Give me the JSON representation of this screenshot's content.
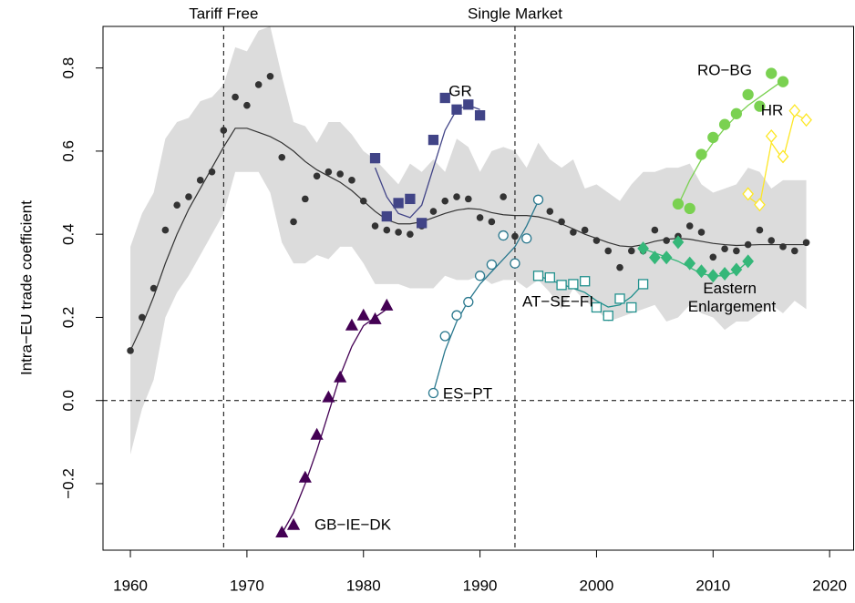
{
  "chart_data": {
    "type": "scatter",
    "y_label": "Intra−EU trade coefficient",
    "xlim": [
      1957.65,
      2022.1
    ],
    "ylim": [
      -0.36,
      0.9
    ],
    "xticks": [
      1960,
      1970,
      1980,
      1990,
      2000,
      2010,
      2020
    ],
    "yticks": [
      {
        "value": -0.2,
        "label": "−0.2"
      },
      {
        "value": 0,
        "label": "0.0"
      },
      0.2,
      0.4,
      0.6,
      0.8
    ],
    "hline": 0,
    "annotations": [
      {
        "x": 1968,
        "label": "Tariff Free"
      },
      {
        "x": 1993,
        "label": "Single Market"
      }
    ],
    "color": "#333333",
    "band_color": "#dcdcdc",
    "x": [
      1960,
      1961,
      1962,
      1963,
      1964,
      1965,
      1966,
      1967,
      1968,
      1969,
      1970,
      1971,
      1972,
      1973,
      1974,
      1975,
      1976,
      1977,
      1978,
      1979,
      1980,
      1981,
      1982,
      1983,
      1984,
      1985,
      1986,
      1987,
      1988,
      1989,
      1990,
      1991,
      1992,
      1993,
      1994,
      1995,
      1996,
      1997,
      1998,
      1999,
      2000,
      2001,
      2002,
      2003,
      2004,
      2005,
      2006,
      2007,
      2008,
      2009,
      2010,
      2011,
      2012,
      2013,
      2014,
      2015,
      2016,
      2017,
      2018
    ],
    "values": [
      0.12,
      0.2,
      0.27,
      0.41,
      0.47,
      0.49,
      0.53,
      0.55,
      0.65,
      0.73,
      0.71,
      0.76,
      0.78,
      0.585,
      0.43,
      0.485,
      0.54,
      0.55,
      0.545,
      0.53,
      0.48,
      0.42,
      0.41,
      0.405,
      0.4,
      0.42,
      0.455,
      0.48,
      0.49,
      0.485,
      0.44,
      0.43,
      0.49,
      0.395,
      0.39,
      0.485,
      0.455,
      0.43,
      0.405,
      0.41,
      0.385,
      0.36,
      0.32,
      0.36,
      0.36,
      0.41,
      0.385,
      0.395,
      0.42,
      0.405,
      0.345,
      0.365,
      0.36,
      0.375,
      0.41,
      0.385,
      0.37,
      0.36,
      0.38
    ],
    "trend": [
      0.12,
      0.18,
      0.25,
      0.33,
      0.4,
      0.46,
      0.51,
      0.56,
      0.61,
      0.655,
      0.655,
      0.645,
      0.635,
      0.62,
      0.6,
      0.575,
      0.555,
      0.54,
      0.525,
      0.505,
      0.48,
      0.455,
      0.435,
      0.425,
      0.425,
      0.43,
      0.44,
      0.45,
      0.458,
      0.462,
      0.46,
      0.452,
      0.447,
      0.445,
      0.445,
      0.442,
      0.435,
      0.425,
      0.413,
      0.4,
      0.39,
      0.38,
      0.372,
      0.37,
      0.375,
      0.383,
      0.388,
      0.39,
      0.388,
      0.383,
      0.378,
      0.375,
      0.373,
      0.374,
      0.375,
      0.375,
      0.375,
      0.375,
      0.375
    ],
    "upper": [
      0.37,
      0.45,
      0.5,
      0.63,
      0.67,
      0.68,
      0.72,
      0.73,
      0.76,
      0.85,
      0.84,
      0.89,
      0.9,
      0.78,
      0.67,
      0.66,
      0.62,
      0.67,
      0.67,
      0.64,
      0.6,
      0.58,
      0.55,
      0.52,
      0.57,
      0.55,
      0.58,
      0.55,
      0.63,
      0.61,
      0.55,
      0.6,
      0.61,
      0.6,
      0.56,
      0.62,
      0.58,
      0.56,
      0.58,
      0.51,
      0.52,
      0.5,
      0.48,
      0.52,
      0.55,
      0.55,
      0.56,
      0.56,
      0.57,
      0.52,
      0.5,
      0.51,
      0.52,
      0.56,
      0.55,
      0.51,
      0.53,
      0.53,
      0.53
    ],
    "lower": [
      -0.13,
      -0.02,
      0.05,
      0.2,
      0.26,
      0.3,
      0.35,
      0.4,
      0.45,
      0.55,
      0.55,
      0.55,
      0.5,
      0.38,
      0.33,
      0.33,
      0.35,
      0.34,
      0.37,
      0.37,
      0.33,
      0.28,
      0.28,
      0.28,
      0.27,
      0.27,
      0.27,
      0.3,
      0.29,
      0.29,
      0.3,
      0.28,
      0.29,
      0.29,
      0.27,
      0.29,
      0.26,
      0.22,
      0.27,
      0.24,
      0.22,
      0.19,
      0.2,
      0.21,
      0.22,
      0.23,
      0.19,
      0.2,
      0.23,
      0.21,
      0.2,
      0.17,
      0.19,
      0.19,
      0.21,
      0.23,
      0.21,
      0.24,
      0.22
    ],
    "series": [
      {
        "name": "GB−IE−DK",
        "color": "#440154",
        "marker": "triangle",
        "filled": true,
        "x": [
          1973,
          1974,
          1975,
          1976,
          1977,
          1978,
          1979,
          1980,
          1981,
          1982
        ],
        "values": [
          -0.318,
          -0.3,
          -0.186,
          -0.083,
          0.007,
          0.055,
          0.18,
          0.204,
          0.195,
          0.228
        ],
        "fit": [
          -0.32,
          -0.27,
          -0.2,
          -0.12,
          -0.03,
          0.06,
          0.13,
          0.18,
          0.2,
          0.22
        ]
      },
      {
        "name": "GR",
        "color": "#414487",
        "marker": "square",
        "filled": true,
        "x": [
          1981,
          1982,
          1983,
          1984,
          1985,
          1986,
          1987,
          1988,
          1989,
          1990
        ],
        "values": [
          0.583,
          0.443,
          0.475,
          0.485,
          0.427,
          0.627,
          0.728,
          0.7,
          0.712,
          0.686
        ],
        "fit": [
          0.56,
          0.49,
          0.45,
          0.44,
          0.47,
          0.56,
          0.65,
          0.7,
          0.71,
          0.7
        ]
      },
      {
        "name": "ES−PT",
        "color": "#2a788e",
        "marker": "circle",
        "filled": false,
        "x": [
          1986,
          1987,
          1988,
          1989,
          1990,
          1991,
          1992,
          1993,
          1994,
          1995
        ],
        "values": [
          0.018,
          0.155,
          0.205,
          0.237,
          0.3,
          0.327,
          0.397,
          0.33,
          0.39,
          0.483
        ],
        "fit": [
          0.02,
          0.12,
          0.19,
          0.24,
          0.28,
          0.31,
          0.34,
          0.37,
          0.42,
          0.48
        ]
      },
      {
        "name": "AT−SE−FI",
        "color": "#21908d",
        "marker": "square",
        "filled": false,
        "x": [
          1995,
          1996,
          1997,
          1998,
          1999,
          2000,
          2001,
          2002,
          2003,
          2004
        ],
        "values": [
          0.3,
          0.296,
          0.278,
          0.28,
          0.287,
          0.224,
          0.204,
          0.245,
          0.224,
          0.28
        ],
        "fit": [
          0.3,
          0.29,
          0.28,
          0.27,
          0.26,
          0.24,
          0.225,
          0.23,
          0.25,
          0.28
        ]
      },
      {
        "name": "Eastern Enlargement",
        "color": "#35b779",
        "marker": "diamond",
        "filled": true,
        "x": [
          2004,
          2005,
          2006,
          2007,
          2008,
          2009,
          2010,
          2011,
          2012,
          2013
        ],
        "values": [
          0.366,
          0.344,
          0.344,
          0.381,
          0.33,
          0.311,
          0.3,
          0.305,
          0.315,
          0.335
        ],
        "fit": [
          0.365,
          0.355,
          0.345,
          0.335,
          0.32,
          0.305,
          0.3,
          0.3,
          0.31,
          0.335
        ]
      },
      {
        "name": "RO−BG",
        "color": "#7ad151",
        "marker": "circle",
        "filled": true,
        "x": [
          2007,
          2008,
          2009,
          2010,
          2011,
          2012,
          2013,
          2014,
          2015,
          2016
        ],
        "values": [
          0.473,
          0.462,
          0.592,
          0.633,
          0.664,
          0.69,
          0.736,
          0.708,
          0.787,
          0.767
        ],
        "fit": [
          0.47,
          0.53,
          0.58,
          0.62,
          0.655,
          0.685,
          0.71,
          0.73,
          0.75,
          0.77
        ]
      },
      {
        "name": "HR",
        "color": "#fde725",
        "marker": "diamond",
        "filled": false,
        "x": [
          2013,
          2014,
          2015,
          2016,
          2017,
          2018
        ],
        "values": [
          0.497,
          0.471,
          0.636,
          0.587,
          0.697,
          0.675
        ],
        "fit": [
          0.49,
          0.47,
          0.62,
          0.58,
          0.69,
          0.675
        ]
      }
    ]
  }
}
